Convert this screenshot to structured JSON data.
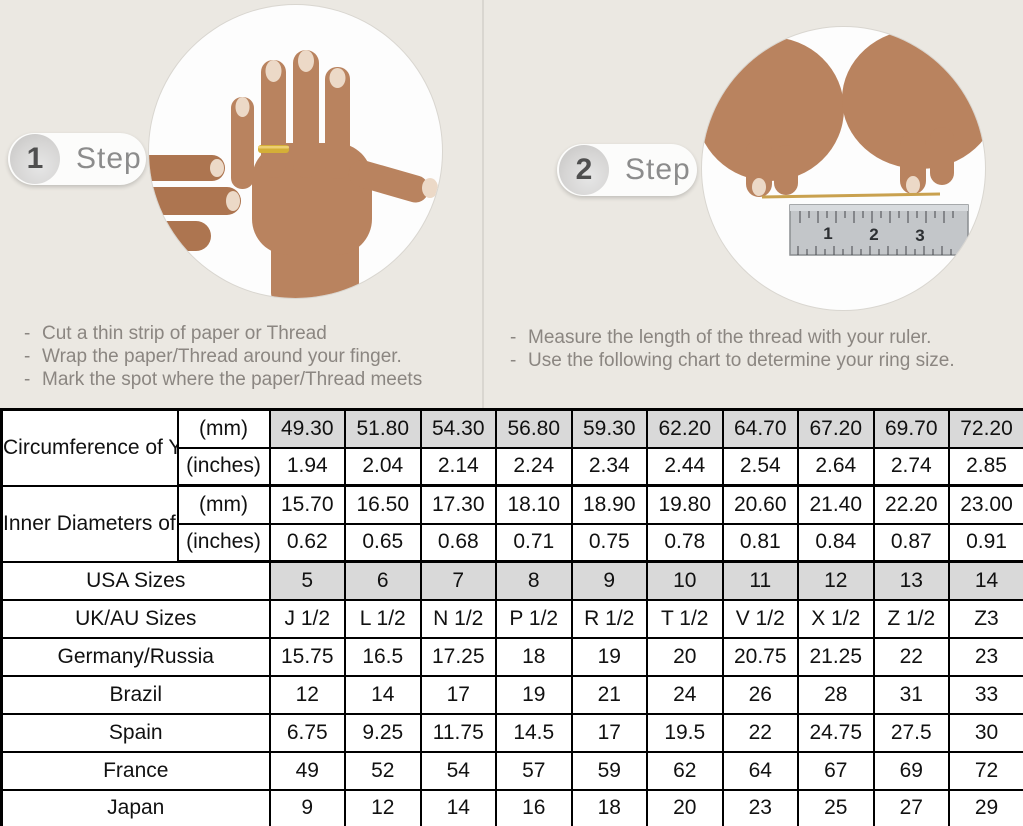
{
  "steps": [
    {
      "number": "1",
      "label": "Step",
      "bullet": "-",
      "instructions": [
        "Cut a thin strip of paper or Thread",
        "Wrap the paper/Thread around your finger.",
        "Mark the spot where the paper/Thread meets"
      ]
    },
    {
      "number": "2",
      "label": "Step",
      "bullet": "-",
      "instructions": [
        "Measure the length of the thread with your ruler.",
        "Use the following chart to determine your ring size."
      ]
    }
  ],
  "photos": {
    "step1_subject": "hand with ring being measured with thread",
    "step2_subject": "thread held taut above a ruler",
    "ruler_numbers": [
      "1",
      "2",
      "3"
    ]
  },
  "chart_data": {
    "type": "table",
    "measure_groups": [
      {
        "label": "Circumference of Your Finger",
        "rows": [
          {
            "unit": "(mm)",
            "shaded": true,
            "values": [
              "49.30",
              "51.80",
              "54.30",
              "56.80",
              "59.30",
              "62.20",
              "64.70",
              "67.20",
              "69.70",
              "72.20"
            ]
          },
          {
            "unit": "(inches)",
            "shaded": false,
            "values": [
              "1.94",
              "2.04",
              "2.14",
              "2.24",
              "2.34",
              "2.44",
              "2.54",
              "2.64",
              "2.74",
              "2.85"
            ]
          }
        ]
      },
      {
        "label": "Inner Diameters of Rings",
        "rows": [
          {
            "unit": "(mm)",
            "shaded": false,
            "values": [
              "15.70",
              "16.50",
              "17.30",
              "18.10",
              "18.90",
              "19.80",
              "20.60",
              "21.40",
              "22.20",
              "23.00"
            ]
          },
          {
            "unit": "(inches)",
            "shaded": false,
            "values": [
              "0.62",
              "0.65",
              "0.68",
              "0.71",
              "0.75",
              "0.78",
              "0.81",
              "0.84",
              "0.87",
              "0.91"
            ]
          }
        ]
      }
    ],
    "size_rows": [
      {
        "label": "USA Sizes",
        "shaded": true,
        "values": [
          "5",
          "6",
          "7",
          "8",
          "9",
          "10",
          "11",
          "12",
          "13",
          "14"
        ]
      },
      {
        "label": "UK/AU Sizes",
        "shaded": false,
        "values": [
          "J 1/2",
          "L 1/2",
          "N 1/2",
          "P 1/2",
          "R 1/2",
          "T 1/2",
          "V 1/2",
          "X 1/2",
          "Z 1/2",
          "Z3"
        ]
      },
      {
        "label": "Germany/Russia",
        "shaded": false,
        "values": [
          "15.75",
          "16.5",
          "17.25",
          "18",
          "19",
          "20",
          "20.75",
          "21.25",
          "22",
          "23"
        ]
      },
      {
        "label": "Brazil",
        "shaded": false,
        "values": [
          "12",
          "14",
          "17",
          "19",
          "21",
          "24",
          "26",
          "28",
          "31",
          "33"
        ]
      },
      {
        "label": "Spain",
        "shaded": false,
        "values": [
          "6.75",
          "9.25",
          "11.75",
          "14.5",
          "17",
          "19.5",
          "22",
          "24.75",
          "27.5",
          "30"
        ]
      },
      {
        "label": "France",
        "shaded": false,
        "values": [
          "49",
          "52",
          "54",
          "57",
          "59",
          "62",
          "64",
          "67",
          "69",
          "72"
        ]
      },
      {
        "label": "Japan",
        "shaded": false,
        "values": [
          "9",
          "12",
          "14",
          "16",
          "18",
          "20",
          "23",
          "25",
          "27",
          "29"
        ]
      }
    ]
  },
  "colors": {
    "background": "#ebe8e2",
    "shaded_cell": "#d9d9d9",
    "table_border": "#000000",
    "step_text": "#8c8c8c",
    "instruction_text": "#8b8681",
    "ring_gold": "#d4af37",
    "skin_tone": "#b9835f"
  }
}
